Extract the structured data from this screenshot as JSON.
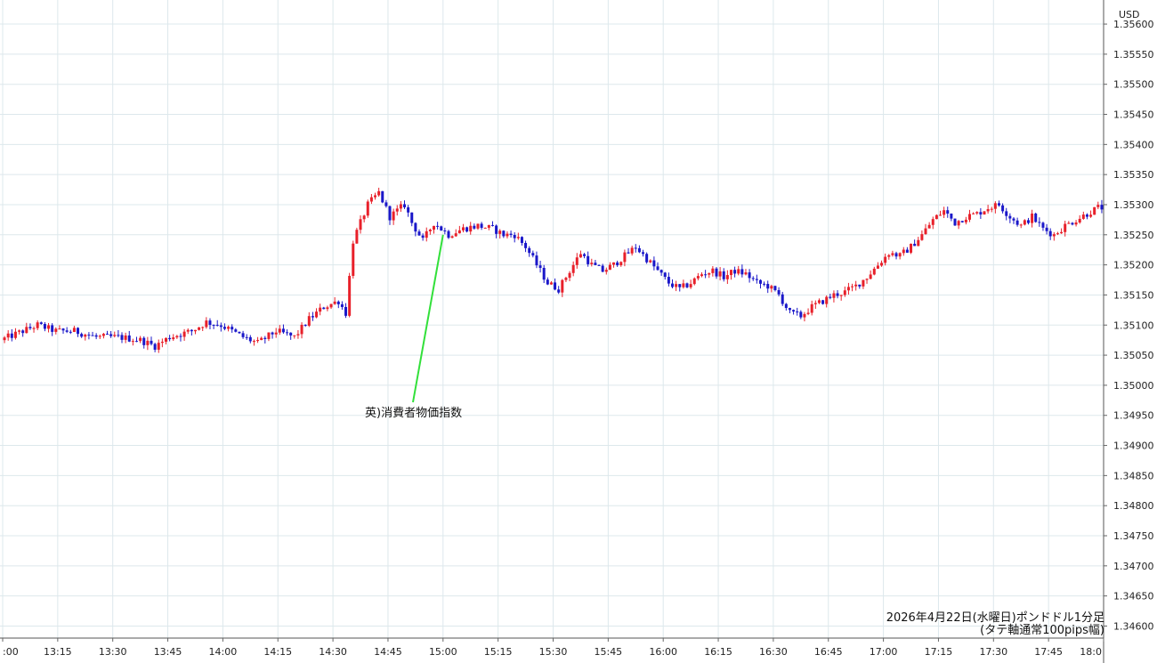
{
  "chart_data": {
    "type": "candlestick",
    "currency_label": "USD",
    "caption_line1": "2026年4月22日(水曜日)ポンドドル1分足",
    "caption_line2": "(タテ軸通常100pips幅)",
    "annotation": {
      "text": "英)消費者物価指数",
      "time": "15:00",
      "price": 1.3525
    },
    "ylim": [
      1.3458,
      1.3564
    ],
    "yticks": [
      1.356,
      1.3555,
      1.355,
      1.3545,
      1.354,
      1.3535,
      1.353,
      1.3525,
      1.352,
      1.3515,
      1.351,
      1.3505,
      1.35,
      1.3495,
      1.349,
      1.3485,
      1.348,
      1.3475,
      1.347,
      1.3465,
      1.346
    ],
    "xticks": [
      ":00",
      "13:15",
      "13:30",
      "13:45",
      "14:00",
      "14:15",
      "14:30",
      "14:45",
      "15:00",
      "15:15",
      "15:30",
      "15:45",
      "16:00",
      "16:15",
      "16:30",
      "16:45",
      "17:00",
      "17:15",
      "17:30",
      "17:45",
      "18:0"
    ],
    "x_range_minutes": [
      780,
      1080
    ],
    "close_keyframes": [
      [
        780,
        1.35075
      ],
      [
        786,
        1.3509
      ],
      [
        790,
        1.351
      ],
      [
        795,
        1.3509
      ],
      [
        800,
        1.3509
      ],
      [
        806,
        1.3508
      ],
      [
        812,
        1.3508
      ],
      [
        818,
        1.35075
      ],
      [
        822,
        1.35065
      ],
      [
        826,
        1.3508
      ],
      [
        832,
        1.3509
      ],
      [
        836,
        1.35105
      ],
      [
        840,
        1.351
      ],
      [
        846,
        1.3508
      ],
      [
        850,
        1.3507
      ],
      [
        855,
        1.3509
      ],
      [
        860,
        1.3508
      ],
      [
        864,
        1.3511
      ],
      [
        868,
        1.3513
      ],
      [
        872,
        1.3514
      ],
      [
        874,
        1.3512
      ],
      [
        876,
        1.3524
      ],
      [
        878,
        1.3527
      ],
      [
        880,
        1.353
      ],
      [
        883,
        1.3532
      ],
      [
        886,
        1.3528
      ],
      [
        890,
        1.353
      ],
      [
        892,
        1.3527
      ],
      [
        895,
        1.3524
      ],
      [
        898,
        1.3527
      ],
      [
        902,
        1.3525
      ],
      [
        906,
        1.3526
      ],
      [
        910,
        1.35265
      ],
      [
        914,
        1.3526
      ],
      [
        917,
        1.3525
      ],
      [
        920,
        1.3525
      ],
      [
        923,
        1.3523
      ],
      [
        926,
        1.352
      ],
      [
        929,
        1.3517
      ],
      [
        932,
        1.3516
      ],
      [
        935,
        1.3519
      ],
      [
        938,
        1.3522
      ],
      [
        941,
        1.352
      ],
      [
        944,
        1.3519
      ],
      [
        947,
        1.352
      ],
      [
        950,
        1.35215
      ],
      [
        953,
        1.3523
      ],
      [
        956,
        1.3521
      ],
      [
        959,
        1.3519
      ],
      [
        962,
        1.3517
      ],
      [
        965,
        1.3516
      ],
      [
        968,
        1.3517
      ],
      [
        971,
        1.35185
      ],
      [
        974,
        1.3519
      ],
      [
        977,
        1.3518
      ],
      [
        980,
        1.3519
      ],
      [
        983,
        1.35185
      ],
      [
        986,
        1.3517
      ],
      [
        989,
        1.35165
      ],
      [
        992,
        1.3515
      ],
      [
        995,
        1.3512
      ],
      [
        998,
        1.35115
      ],
      [
        1001,
        1.3513
      ],
      [
        1004,
        1.3514
      ],
      [
        1007,
        1.3515
      ],
      [
        1010,
        1.35155
      ],
      [
        1013,
        1.35165
      ],
      [
        1016,
        1.3518
      ],
      [
        1019,
        1.352
      ],
      [
        1022,
        1.3522
      ],
      [
        1025,
        1.35215
      ],
      [
        1028,
        1.3523
      ],
      [
        1031,
        1.3525
      ],
      [
        1034,
        1.35275
      ],
      [
        1037,
        1.3529
      ],
      [
        1040,
        1.3527
      ],
      [
        1043,
        1.3528
      ],
      [
        1046,
        1.35285
      ],
      [
        1049,
        1.35295
      ],
      [
        1052,
        1.353
      ],
      [
        1055,
        1.3528
      ],
      [
        1058,
        1.35265
      ],
      [
        1061,
        1.3528
      ],
      [
        1064,
        1.3526
      ],
      [
        1067,
        1.3525
      ],
      [
        1070,
        1.35265
      ],
      [
        1073,
        1.35275
      ],
      [
        1076,
        1.35285
      ],
      [
        1079,
        1.35295
      ]
    ],
    "series_colors": {
      "up": "#e8202a",
      "down": "#1a17c9",
      "annotation_line": "#32e03a"
    }
  }
}
